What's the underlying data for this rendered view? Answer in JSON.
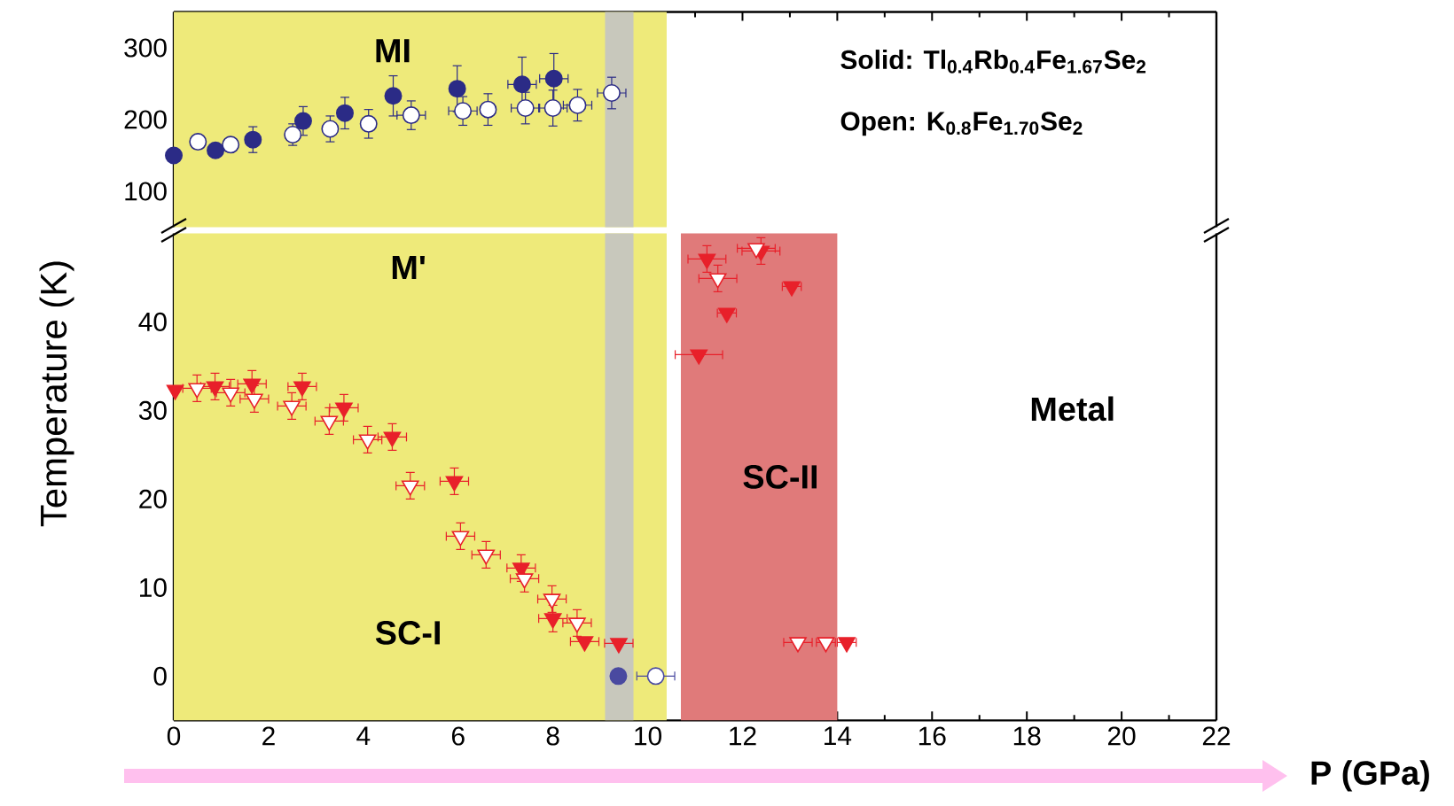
{
  "chart_data": [
    {
      "type": "scatter",
      "xlim": [
        0,
        22
      ],
      "ylim": [
        50,
        350
      ],
      "xticks": [
        0,
        2,
        4,
        6,
        8,
        10,
        12,
        14,
        16,
        18,
        20,
        22
      ],
      "yticks": [
        100,
        200,
        300
      ],
      "tick_labels": "y",
      "annotations": [
        "Solid: Tl$_{0.4}$Rb$_{0.4}$Fe$_{1.67}$Se$_{2}$",
        "Open: K$_{0.8}$Fe$_{1.70}$Se$_{2}$",
        "MI"
      ],
      "bands": [
        {
          "axis": "x",
          "from": 0,
          "to": 10.4,
          "color": "#eeea7a"
        },
        {
          "axis": "x",
          "from": 9.1,
          "to": 9.7,
          "color": "#c8c8bc"
        }
      ],
      "series": [
        {
          "marker": "circle",
          "color": "#2b2b86",
          "x": [
            0,
            0.88,
            1.67,
            2.73,
            3.61,
            4.63,
            5.98,
            7.35,
            8.02
          ],
          "values": [
            150,
            157,
            172,
            198,
            209,
            233,
            243,
            249,
            257
          ],
          "errors": [
            null,
            null,
            18,
            20,
            22,
            28,
            32,
            38,
            35
          ],
          "xerrors": [
            null,
            null,
            null,
            null,
            null,
            null,
            null,
            0.3,
            0.3
          ]
        },
        {
          "marker": "circle",
          "color": "#ffffff",
          "x": [
            0.51,
            1.2,
            2.51,
            3.3,
            4.11,
            5.01,
            6.1,
            6.63,
            7.42,
            8.0,
            8.52,
            9.24
          ],
          "values": [
            169,
            165,
            179,
            187,
            194,
            206,
            212,
            214,
            216,
            216,
            220,
            237
          ],
          "errors": [
            null,
            null,
            15,
            18,
            20,
            20,
            20,
            22,
            22,
            25,
            22,
            22
          ],
          "xerrors": [
            null,
            null,
            null,
            null,
            null,
            0.3,
            0.3,
            null,
            0.3,
            0.3,
            0.3,
            0.3
          ]
        }
      ]
    },
    {
      "type": "scatter",
      "xlim": [
        0,
        22
      ],
      "ylim": [
        -5,
        50
      ],
      "xticks": [
        0,
        2,
        4,
        6,
        8,
        10,
        12,
        14,
        16,
        18,
        20,
        22
      ],
      "yticks": [
        0,
        10,
        20,
        30,
        40
      ],
      "xlabel": "P (GPa)",
      "ylabel": "Temperature (K)",
      "annotations": [
        "M'",
        "SC-I",
        "SC-II",
        "Metal"
      ],
      "bands": [
        {
          "axis": "x",
          "from": 0,
          "to": 10.4,
          "color": "#eeea7a"
        },
        {
          "axis": "x",
          "from": 9.1,
          "to": 9.7,
          "color": "#c8c8bc"
        },
        {
          "axis": "x",
          "from": 10.7,
          "to": 14.0,
          "color": "#e07a7a"
        }
      ],
      "series": [
        {
          "marker": "triangle",
          "color": "#e8202a",
          "x": [
            0.03,
            0.87,
            1.65,
            2.71,
            3.59,
            4.61,
            5.92,
            7.33,
            8.0,
            8.67,
            9.39,
            11.08,
            11.25,
            11.67,
            12.39,
            13.04,
            14.2
          ],
          "values": [
            32.3,
            32.7,
            33,
            32.7,
            30.3,
            27,
            22,
            12.2,
            6.5,
            3.9,
            3.7,
            36.3,
            47.1,
            41,
            48,
            44,
            3.8
          ],
          "errors": [
            null,
            1.5,
            1.5,
            1.5,
            1.5,
            1.5,
            1.5,
            1.5,
            1.5,
            null,
            null,
            null,
            1.5,
            null,
            1.5,
            null,
            null
          ],
          "xerrors": [
            null,
            0.3,
            0.3,
            0.3,
            0.3,
            0.3,
            0.3,
            0.3,
            0.3,
            0.3,
            0.3,
            0.5,
            0.4,
            0.2,
            0.4,
            0.2,
            0.2
          ]
        },
        {
          "marker": "triangle",
          "color": "#ffffff",
          "x": [
            0.49,
            1.2,
            1.7,
            2.49,
            3.28,
            4.09,
            4.99,
            6.05,
            6.59,
            7.4,
            7.98,
            8.51,
            11.48,
            12.29,
            13.17,
            13.76
          ],
          "values": [
            32.5,
            32,
            31.3,
            30.5,
            28.8,
            26.7,
            21.5,
            15.8,
            13.7,
            11,
            8.7,
            6,
            44.9,
            48.3,
            3.8,
            3.8
          ],
          "errors": [
            1.5,
            1.5,
            1.5,
            1.5,
            1.5,
            1.5,
            1.5,
            1.5,
            1.5,
            1.5,
            1.5,
            1.5,
            1.5,
            null,
            null,
            null
          ],
          "xerrors": [
            0.3,
            0.3,
            0.3,
            0.3,
            0.3,
            0.3,
            0.3,
            0.3,
            0.3,
            0.3,
            0.3,
            0.3,
            0.4,
            0.4,
            0.3,
            0.2
          ]
        },
        {
          "marker": "circle",
          "color": "#4a4aa0",
          "x": [
            9.38
          ],
          "values": [
            0
          ]
        },
        {
          "marker": "circle",
          "color": "#ffffff",
          "x": [
            10.17
          ],
          "values": [
            0
          ],
          "xerrors": [
            0.4
          ]
        }
      ]
    }
  ]
}
